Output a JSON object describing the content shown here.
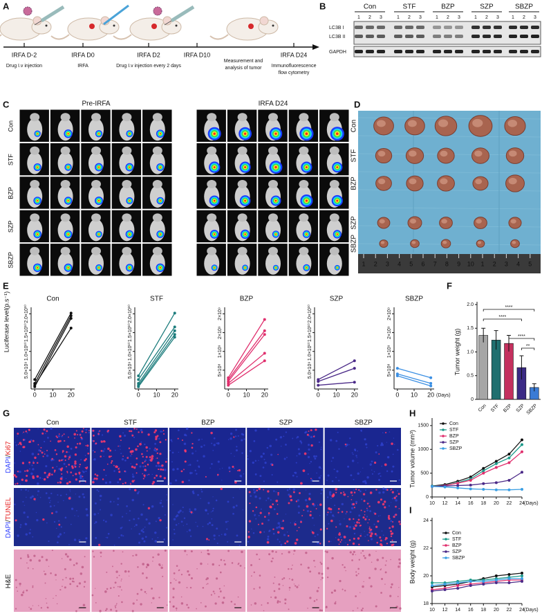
{
  "panel_labels": [
    "A",
    "B",
    "C",
    "D",
    "E",
    "F",
    "G",
    "H",
    "I"
  ],
  "groups": [
    "Con",
    "STF",
    "BZP",
    "SZP",
    "SBZP"
  ],
  "timeline": {
    "events": [
      {
        "label": "IRFA D-2",
        "note": [
          "Drug I.v injection"
        ]
      },
      {
        "label": "IRFA D0",
        "note": [
          "IRFA"
        ]
      },
      {
        "label": "IRFA D2",
        "note": [
          "Drug I.v injection every 2 days"
        ]
      },
      {
        "label": "IRFA D10"
      },
      {
        "note": [
          "Measurement and",
          "analysis of tumor"
        ]
      },
      {
        "label": "IRFA D24",
        "note": [
          "Immunofluorescence",
          "flow cytometry"
        ]
      }
    ]
  },
  "blot": {
    "lanes": [
      1,
      2,
      3
    ],
    "bands": [
      "LC3B I",
      "LC3B II",
      "GAPDH"
    ]
  },
  "imaging": {
    "titles": [
      "Pre-IRFA",
      "IRFA D24"
    ]
  },
  "photo": {
    "ruler": [
      1,
      2,
      3,
      4,
      5,
      6,
      7,
      8,
      9,
      10,
      1,
      2,
      3,
      4,
      5
    ]
  },
  "staining": {
    "rows": [
      [
        "DAPI",
        "/",
        "Ki67"
      ],
      [
        "DAPI",
        "/",
        "TUNEL"
      ],
      [
        "H&E"
      ]
    ]
  },
  "chart_data": [
    {
      "type": "line",
      "title": "Con",
      "ylabel": "Luciferase level(p.s⁻¹)",
      "x": [
        0,
        20
      ],
      "xlim": [
        -2,
        22
      ],
      "xticks": [
        0,
        10,
        20
      ],
      "ylim": [
        0,
        21000000000.0
      ],
      "yticks": [
        {
          "value": 5000000000.0,
          "label": "5.0×10⁹"
        },
        {
          "value": 10000000000.0,
          "label": "1.0×10¹⁰"
        },
        {
          "value": 15000000000.0,
          "label": "1.5×10¹⁰"
        },
        {
          "value": 20000000000.0,
          "label": "2.0×10¹⁰"
        }
      ],
      "series": [
        {
          "color": "#111111",
          "values": [
            2500000000.0,
            20200000000.0
          ]
        },
        {
          "color": "#111111",
          "values": [
            1500000000.0,
            19500000000.0
          ]
        },
        {
          "color": "#111111",
          "values": [
            600000000.0,
            18800000000.0
          ]
        },
        {
          "color": "#111111",
          "values": [
            1000000000.0,
            16200000000.0
          ]
        }
      ]
    },
    {
      "type": "line",
      "title": "STF",
      "x": [
        0,
        20
      ],
      "xlim": [
        -2,
        22
      ],
      "xticks": [
        0,
        10,
        20
      ],
      "ylim": [
        0,
        21000000000.0
      ],
      "yticks": [
        {
          "value": 5000000000.0,
          "label": "5.0×10⁹"
        },
        {
          "value": 10000000000.0,
          "label": "1.0×10¹⁰"
        },
        {
          "value": 15000000000.0,
          "label": "1.5×10¹⁰"
        },
        {
          "value": 20000000000.0,
          "label": "2.0×10¹⁰"
        }
      ],
      "series": [
        {
          "color": "#1d7d7d",
          "values": [
            3500000000.0,
            20200000000.0
          ]
        },
        {
          "color": "#1d7d7d",
          "values": [
            2500000000.0,
            16500000000.0
          ]
        },
        {
          "color": "#1d7d7d",
          "values": [
            1500000000.0,
            15500000000.0
          ]
        },
        {
          "color": "#1d7d7d",
          "values": [
            1000000000.0,
            14500000000.0
          ]
        },
        {
          "color": "#1d7d7d",
          "values": [
            600000000.0,
            13800000000.0
          ]
        }
      ]
    },
    {
      "type": "line",
      "title": "BZP",
      "x": [
        0,
        20
      ],
      "xlim": [
        -2,
        22
      ],
      "xticks": [
        0,
        10,
        20
      ],
      "ylim": [
        0,
        2100000000.0
      ],
      "yticks": [
        {
          "value": 500000000.0,
          "label": "5×10⁸"
        },
        {
          "value": 1000000000.0,
          "label": "1×10⁹"
        },
        {
          "value": 1500000000.0,
          "label": "2×10⁹"
        },
        {
          "value": 2000000000.0,
          "label": "2×10⁹"
        }
      ],
      "series": [
        {
          "color": "#e0306e",
          "values": [
            300000000.0,
            1850000000.0
          ]
        },
        {
          "color": "#e0306e",
          "values": [
            250000000.0,
            1550000000.0
          ]
        },
        {
          "color": "#e0306e",
          "values": [
            200000000.0,
            1450000000.0
          ]
        },
        {
          "color": "#e0306e",
          "values": [
            150000000.0,
            950000000.0
          ]
        },
        {
          "color": "#e0306e",
          "values": [
            100000000.0,
            750000000.0
          ]
        }
      ]
    },
    {
      "type": "line",
      "title": "SZP",
      "x": [
        0,
        20
      ],
      "xlim": [
        -2,
        22
      ],
      "xticks": [
        0,
        10,
        20
      ],
      "ylim": [
        0,
        21000000000.0
      ],
      "yticks": [
        {
          "value": 5000000000.0,
          "label": "5.0×10⁹"
        },
        {
          "value": 10000000000.0,
          "label": "1.0×10¹⁰"
        },
        {
          "value": 15000000000.0,
          "label": "1.5×10¹⁰"
        },
        {
          "value": 20000000000.0,
          "label": "2.0×10¹⁰"
        }
      ],
      "series": [
        {
          "color": "#4b2a88",
          "values": [
            2500000000.0,
            7500000000.0
          ]
        },
        {
          "color": "#4b2a88",
          "values": [
            2000000000.0,
            5500000000.0
          ]
        },
        {
          "color": "#4b2a88",
          "values": [
            1000000000.0,
            1800000000.0
          ]
        }
      ]
    },
    {
      "type": "line",
      "title": "SBZP",
      "xlabel": "(Days)",
      "x": [
        0,
        20
      ],
      "xlim": [
        -2,
        22
      ],
      "xticks": [
        0,
        10,
        20
      ],
      "ylim": [
        0,
        2100000000.0
      ],
      "yticks": [
        {
          "value": 500000000.0,
          "label": "5×10⁸"
        },
        {
          "value": 1000000000.0,
          "label": "1×10⁹"
        },
        {
          "value": 1500000000.0,
          "label": "2×10⁹"
        },
        {
          "value": 2000000000.0,
          "label": "2×10⁹"
        }
      ],
      "series": [
        {
          "color": "#3b8fe3",
          "values": [
            550000000.0,
            300000000.0
          ]
        },
        {
          "color": "#3b8fe3",
          "values": [
            400000000.0,
            150000000.0
          ]
        },
        {
          "color": "#3b8fe3",
          "values": [
            350000000.0,
            80000000.0
          ]
        }
      ]
    },
    {
      "type": "bar",
      "ylabel": "Tumor weight (g)",
      "categories": [
        "Con",
        "STF",
        "BZP",
        "SZP",
        "SBZP"
      ],
      "values": [
        1.35,
        1.25,
        1.18,
        0.67,
        0.25
      ],
      "errors": [
        0.15,
        0.2,
        0.17,
        0.25,
        0.08
      ],
      "colors": [
        "#a6a6a6",
        "#1f6f6f",
        "#c4305e",
        "#3b2a85",
        "#3a7bd5"
      ],
      "ylim": [
        0,
        2
      ],
      "yticks": [
        0,
        0.5,
        {
          "value": 1,
          "label": "1.0"
        },
        1.5,
        {
          "value": 2,
          "label": "2.0"
        }
      ],
      "annotations": [
        "****",
        "****",
        "****",
        "**"
      ]
    },
    {
      "type": "line",
      "ylabel": "Tumor volume (mm³)",
      "xlabel": "(Days)",
      "x": [
        10,
        12,
        14,
        16,
        18,
        20,
        22,
        24
      ],
      "xlim": [
        10,
        24
      ],
      "xticks": [
        10,
        12,
        14,
        16,
        18,
        20,
        22,
        24
      ],
      "ylim": [
        0,
        1600
      ],
      "yticks": [
        0,
        500,
        1000,
        1500
      ],
      "series": [
        {
          "name": "Con",
          "color": "#111111",
          "values": [
            230,
            260,
            330,
            420,
            600,
            750,
            900,
            1200
          ]
        },
        {
          "name": "STF",
          "color": "#1d9a8a",
          "values": [
            230,
            240,
            300,
            380,
            550,
            700,
            820,
            1100
          ]
        },
        {
          "name": "BZP",
          "color": "#e0306e",
          "values": [
            220,
            240,
            290,
            350,
            500,
            620,
            720,
            950
          ]
        },
        {
          "name": "SZP",
          "color": "#4b2a88",
          "values": [
            220,
            230,
            240,
            250,
            280,
            300,
            350,
            520
          ]
        },
        {
          "name": "SBZP",
          "color": "#3b9fe3",
          "values": [
            220,
            210,
            190,
            170,
            160,
            150,
            150,
            160
          ]
        }
      ]
    },
    {
      "type": "line",
      "ylabel": "Body weight (g)",
      "xlabel": "(Days)",
      "x": [
        10,
        12,
        14,
        16,
        18,
        20,
        22,
        24
      ],
      "xlim": [
        10,
        24
      ],
      "xticks": [
        10,
        12,
        14,
        16,
        18,
        20,
        22,
        24
      ],
      "ylim": [
        18,
        24
      ],
      "yticks": [
        18,
        20,
        22,
        24
      ],
      "series": [
        {
          "name": "Con",
          "color": "#111111",
          "values": [
            19.2,
            19.3,
            19.4,
            19.6,
            19.8,
            20,
            20.1,
            20.2
          ]
        },
        {
          "name": "STF",
          "color": "#1d9a8a",
          "values": [
            19.5,
            19.5,
            19.6,
            19.7,
            19.7,
            19.8,
            19.9,
            20
          ]
        },
        {
          "name": "BZP",
          "color": "#e0306e",
          "values": [
            19,
            19.1,
            19.3,
            19.4,
            19.5,
            19.6,
            19.7,
            19.7
          ]
        },
        {
          "name": "SZP",
          "color": "#4b2a88",
          "values": [
            18.9,
            19,
            19.1,
            19.3,
            19.4,
            19.5,
            19.5,
            19.6
          ]
        },
        {
          "name": "SBZP",
          "color": "#3b9fe3",
          "values": [
            19.3,
            19.4,
            19.5,
            19.6,
            19.6,
            19.7,
            19.8,
            19.8
          ]
        }
      ]
    }
  ]
}
